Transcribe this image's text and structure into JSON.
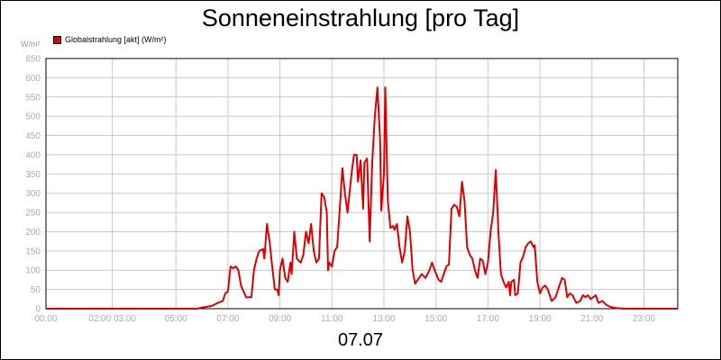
{
  "chart_data": {
    "type": "line",
    "title": "Sonneneinstrahlung [pro Tag]",
    "unit_label": "W/m²",
    "date_label": "07.07",
    "legend_position": "top-left",
    "grid": true,
    "ylim": [
      0,
      650
    ],
    "y_ticks": [
      0,
      50,
      100,
      150,
      200,
      250,
      300,
      350,
      400,
      450,
      500,
      550,
      600,
      650
    ],
    "xlim": [
      0,
      24.3
    ],
    "x_ticks": [
      {
        "label": "00:00",
        "x": 0
      },
      {
        "label": "02:00 03:00",
        "x": 2.55
      },
      {
        "label": "05:00",
        "x": 5
      },
      {
        "label": "07:00",
        "x": 7
      },
      {
        "label": "09:00",
        "x": 9
      },
      {
        "label": "11:00",
        "x": 11
      },
      {
        "label": "13:00",
        "x": 13
      },
      {
        "label": "15:00",
        "x": 15
      },
      {
        "label": "17:00",
        "x": 17
      },
      {
        "label": "19:00",
        "x": 19
      },
      {
        "label": "21:00",
        "x": 21
      },
      {
        "label": "23:00",
        "x": 23
      }
    ],
    "series": [
      {
        "name": "Globalstrahlung [akt] (W/m²)",
        "color": "#dd0000",
        "points": [
          [
            0,
            0
          ],
          [
            5.8,
            0
          ],
          [
            6.0,
            3
          ],
          [
            6.2,
            5
          ],
          [
            6.4,
            8
          ],
          [
            6.6,
            15
          ],
          [
            6.8,
            20
          ],
          [
            6.9,
            40
          ],
          [
            7.0,
            45
          ],
          [
            7.1,
            110
          ],
          [
            7.2,
            105
          ],
          [
            7.3,
            110
          ],
          [
            7.4,
            100
          ],
          [
            7.5,
            60
          ],
          [
            7.6,
            45
          ],
          [
            7.7,
            30
          ],
          [
            7.9,
            30
          ],
          [
            8.0,
            100
          ],
          [
            8.1,
            130
          ],
          [
            8.2,
            150
          ],
          [
            8.35,
            155
          ],
          [
            8.4,
            130
          ],
          [
            8.5,
            220
          ],
          [
            8.6,
            175
          ],
          [
            8.7,
            110
          ],
          [
            8.8,
            50
          ],
          [
            8.9,
            50
          ],
          [
            8.95,
            35
          ],
          [
            9.0,
            100
          ],
          [
            9.1,
            130
          ],
          [
            9.2,
            80
          ],
          [
            9.3,
            70
          ],
          [
            9.4,
            120
          ],
          [
            9.45,
            90
          ],
          [
            9.55,
            200
          ],
          [
            9.65,
            130
          ],
          [
            9.8,
            120
          ],
          [
            9.9,
            140
          ],
          [
            10.0,
            200
          ],
          [
            10.1,
            170
          ],
          [
            10.2,
            220
          ],
          [
            10.3,
            150
          ],
          [
            10.4,
            120
          ],
          [
            10.5,
            130
          ],
          [
            10.6,
            300
          ],
          [
            10.7,
            290
          ],
          [
            10.8,
            250
          ],
          [
            10.85,
            100
          ],
          [
            10.9,
            120
          ],
          [
            11.0,
            110
          ],
          [
            11.1,
            150
          ],
          [
            11.2,
            160
          ],
          [
            11.3,
            260
          ],
          [
            11.4,
            365
          ],
          [
            11.5,
            300
          ],
          [
            11.6,
            250
          ],
          [
            11.75,
            350
          ],
          [
            11.85,
            400
          ],
          [
            11.95,
            400
          ],
          [
            12.0,
            330
          ],
          [
            12.1,
            385
          ],
          [
            12.2,
            260
          ],
          [
            12.25,
            380
          ],
          [
            12.35,
            390
          ],
          [
            12.45,
            175
          ],
          [
            12.55,
            380
          ],
          [
            12.65,
            500
          ],
          [
            12.75,
            575
          ],
          [
            12.85,
            440
          ],
          [
            12.9,
            255
          ],
          [
            13.0,
            350
          ],
          [
            13.05,
            575
          ],
          [
            13.15,
            280
          ],
          [
            13.25,
            210
          ],
          [
            13.35,
            215
          ],
          [
            13.4,
            205
          ],
          [
            13.5,
            220
          ],
          [
            13.6,
            160
          ],
          [
            13.7,
            120
          ],
          [
            13.8,
            150
          ],
          [
            13.9,
            240
          ],
          [
            14.0,
            200
          ],
          [
            14.1,
            100
          ],
          [
            14.2,
            65
          ],
          [
            14.35,
            80
          ],
          [
            14.45,
            90
          ],
          [
            14.6,
            80
          ],
          [
            14.75,
            100
          ],
          [
            14.85,
            120
          ],
          [
            14.95,
            100
          ],
          [
            15.1,
            75
          ],
          [
            15.2,
            70
          ],
          [
            15.3,
            90
          ],
          [
            15.4,
            110
          ],
          [
            15.5,
            115
          ],
          [
            15.6,
            260
          ],
          [
            15.7,
            270
          ],
          [
            15.8,
            265
          ],
          [
            15.9,
            240
          ],
          [
            16.0,
            330
          ],
          [
            16.1,
            280
          ],
          [
            16.2,
            160
          ],
          [
            16.3,
            140
          ],
          [
            16.4,
            130
          ],
          [
            16.5,
            100
          ],
          [
            16.6,
            80
          ],
          [
            16.7,
            130
          ],
          [
            16.8,
            125
          ],
          [
            16.9,
            90
          ],
          [
            17.0,
            120
          ],
          [
            17.1,
            200
          ],
          [
            17.2,
            250
          ],
          [
            17.3,
            360
          ],
          [
            17.4,
            200
          ],
          [
            17.5,
            90
          ],
          [
            17.6,
            70
          ],
          [
            17.7,
            55
          ],
          [
            17.8,
            70
          ],
          [
            17.85,
            35
          ],
          [
            17.9,
            70
          ],
          [
            18.0,
            75
          ],
          [
            18.05,
            35
          ],
          [
            18.15,
            40
          ],
          [
            18.25,
            120
          ],
          [
            18.35,
            135
          ],
          [
            18.45,
            160
          ],
          [
            18.55,
            170
          ],
          [
            18.65,
            175
          ],
          [
            18.75,
            160
          ],
          [
            18.8,
            165
          ],
          [
            18.9,
            70
          ],
          [
            19.0,
            40
          ],
          [
            19.1,
            55
          ],
          [
            19.2,
            60
          ],
          [
            19.3,
            50
          ],
          [
            19.45,
            20
          ],
          [
            19.6,
            30
          ],
          [
            19.75,
            60
          ],
          [
            19.85,
            80
          ],
          [
            19.95,
            75
          ],
          [
            20.05,
            30
          ],
          [
            20.15,
            40
          ],
          [
            20.25,
            35
          ],
          [
            20.4,
            15
          ],
          [
            20.55,
            20
          ],
          [
            20.65,
            35
          ],
          [
            20.75,
            30
          ],
          [
            20.85,
            35
          ],
          [
            20.95,
            25
          ],
          [
            21.05,
            30
          ],
          [
            21.15,
            35
          ],
          [
            21.25,
            15
          ],
          [
            21.4,
            20
          ],
          [
            21.55,
            10
          ],
          [
            21.7,
            5
          ],
          [
            21.9,
            2
          ],
          [
            22.2,
            0
          ],
          [
            24.3,
            0
          ]
        ]
      }
    ]
  }
}
